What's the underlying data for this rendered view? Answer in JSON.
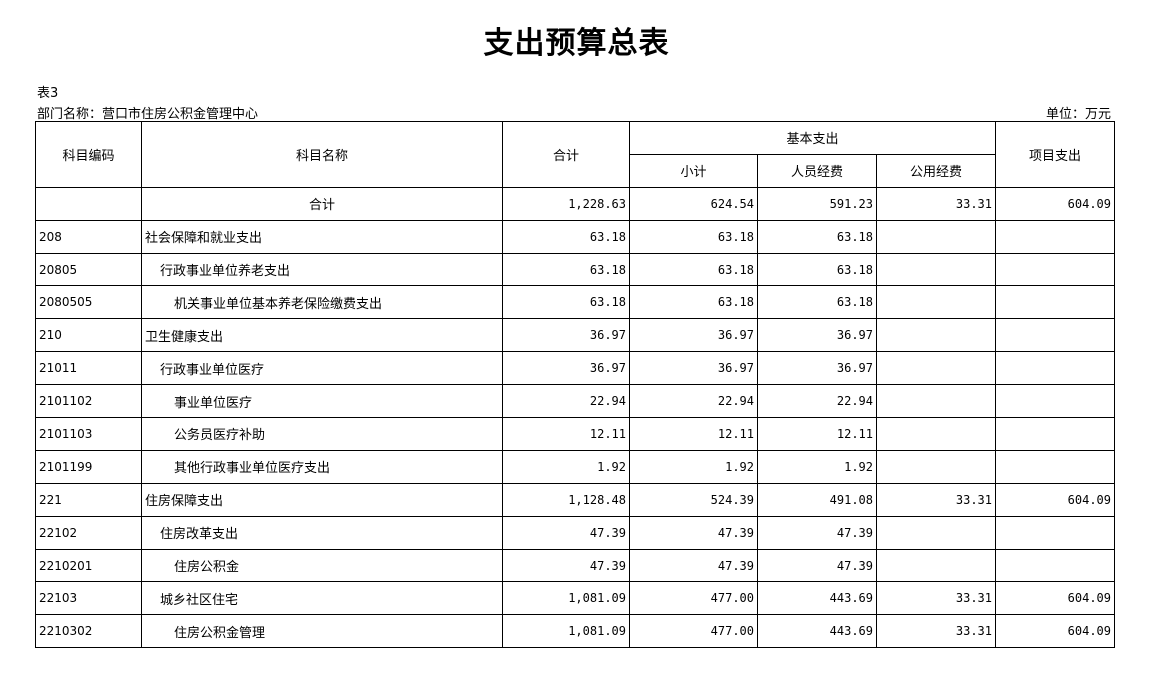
{
  "title": "支出预算总表",
  "table_no": "表3",
  "department": "部门名称：营口市住房公积金管理中心",
  "unit": "单位：万元",
  "headers": {
    "code": "科目编码",
    "name": "科目名称",
    "total": "合计",
    "basic": "基本支出",
    "subtotal": "小计",
    "personnel": "人员经费",
    "public": "公用经费",
    "project": "项目支出"
  },
  "rows": [
    {
      "code": "",
      "name": "合计",
      "level": -1,
      "total": "1,228.63",
      "subtotal": "624.54",
      "personnel": "591.23",
      "public": "33.31",
      "project": "604.09"
    },
    {
      "code": "208",
      "name": "社会保障和就业支出",
      "level": 0,
      "total": "63.18",
      "subtotal": "63.18",
      "personnel": "63.18",
      "public": "",
      "project": ""
    },
    {
      "code": "20805",
      "name": "行政事业单位养老支出",
      "level": 1,
      "total": "63.18",
      "subtotal": "63.18",
      "personnel": "63.18",
      "public": "",
      "project": ""
    },
    {
      "code": "2080505",
      "name": "机关事业单位基本养老保险缴费支出",
      "level": 2,
      "total": "63.18",
      "subtotal": "63.18",
      "personnel": "63.18",
      "public": "",
      "project": ""
    },
    {
      "code": "210",
      "name": "卫生健康支出",
      "level": 0,
      "total": "36.97",
      "subtotal": "36.97",
      "personnel": "36.97",
      "public": "",
      "project": ""
    },
    {
      "code": "21011",
      "name": "行政事业单位医疗",
      "level": 1,
      "total": "36.97",
      "subtotal": "36.97",
      "personnel": "36.97",
      "public": "",
      "project": ""
    },
    {
      "code": "2101102",
      "name": "事业单位医疗",
      "level": 2,
      "total": "22.94",
      "subtotal": "22.94",
      "personnel": "22.94",
      "public": "",
      "project": ""
    },
    {
      "code": "2101103",
      "name": "公务员医疗补助",
      "level": 2,
      "total": "12.11",
      "subtotal": "12.11",
      "personnel": "12.11",
      "public": "",
      "project": ""
    },
    {
      "code": "2101199",
      "name": "其他行政事业单位医疗支出",
      "level": 2,
      "total": "1.92",
      "subtotal": "1.92",
      "personnel": "1.92",
      "public": "",
      "project": ""
    },
    {
      "code": "221",
      "name": "住房保障支出",
      "level": 0,
      "total": "1,128.48",
      "subtotal": "524.39",
      "personnel": "491.08",
      "public": "33.31",
      "project": "604.09"
    },
    {
      "code": "22102",
      "name": "住房改革支出",
      "level": 1,
      "total": "47.39",
      "subtotal": "47.39",
      "personnel": "47.39",
      "public": "",
      "project": ""
    },
    {
      "code": "2210201",
      "name": "住房公积金",
      "level": 2,
      "total": "47.39",
      "subtotal": "47.39",
      "personnel": "47.39",
      "public": "",
      "project": ""
    },
    {
      "code": "22103",
      "name": "城乡社区住宅",
      "level": 1,
      "total": "1,081.09",
      "subtotal": "477.00",
      "personnel": "443.69",
      "public": "33.31",
      "project": "604.09"
    },
    {
      "code": "2210302",
      "name": "住房公积金管理",
      "level": 2,
      "total": "1,081.09",
      "subtotal": "477.00",
      "personnel": "443.69",
      "public": "33.31",
      "project": "604.09"
    }
  ]
}
